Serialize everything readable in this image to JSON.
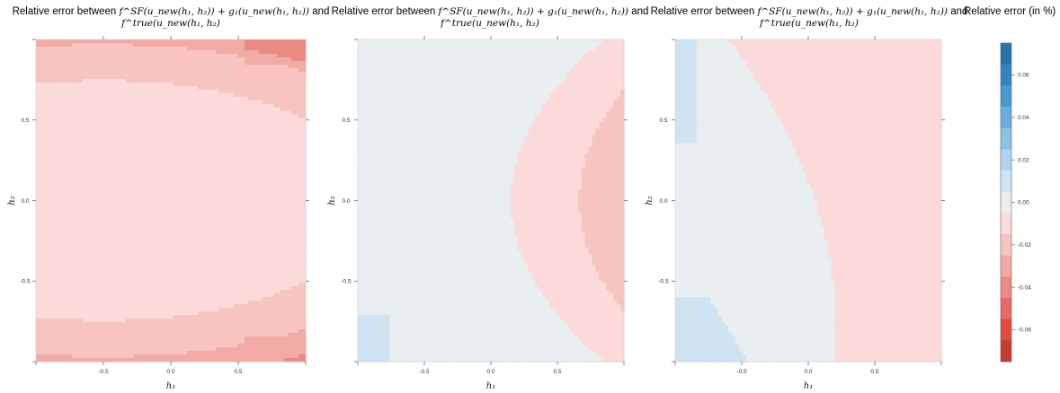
{
  "colorbar": {
    "title": "Relative error (in %)",
    "ticks": [
      "0.06",
      "0.04",
      "0.02",
      "0.00",
      "-0.02",
      "-0.04",
      "-0.06"
    ],
    "levels": [
      0.075,
      0.065,
      0.055,
      0.045,
      0.035,
      0.025,
      0.015,
      0.005,
      -0.005,
      -0.015,
      -0.025,
      -0.035,
      -0.045,
      -0.055,
      -0.065,
      -0.075
    ],
    "colors": [
      "#2a71a9",
      "#3384bd",
      "#4b98d1",
      "#6aacdc",
      "#8fc0e5",
      "#b2d3ee",
      "#cfe3f3",
      "#e9eef0",
      "#fbdad9",
      "#f7c4c1",
      "#f2aaa6",
      "#ea8a83",
      "#e46b64",
      "#e04a3f",
      "#c33c31"
    ]
  },
  "chart_data": [
    {
      "type": "heatmap",
      "title": "Relative error between f^SF(u_new(h1,h2)) + g1(u_new(h1,h2)) and f^true(u_new(h1,h2)",
      "title_line1": "Relative error between ",
      "title_math1": "f^SF(u_new(h₁, h₂)) + g₁(u_new(h₁, h₂))",
      "title_line1_end": " and",
      "title_math2": "f^true(u_new(h₁, h₂)",
      "xlabel": "h₁",
      "ylabel": "h₂",
      "xlim": [
        -1,
        1
      ],
      "ylim": [
        -1,
        1
      ],
      "xticks": [
        "-0.5",
        "0.0",
        "0.5"
      ],
      "yticks": [
        "0.5",
        "0.0",
        "-0.5"
      ],
      "model": "ellipse",
      "levels_by_band": [
        -0.005,
        -0.015,
        -0.025,
        -0.035,
        -0.045,
        -0.055
      ],
      "note_range": [
        -0.06,
        0.0
      ]
    },
    {
      "type": "heatmap",
      "title": "Relative error between f^SF(u_new(h1,h2)) + g1(u_new(h1,h2)) and f^true(u_new(h1,h2)",
      "title_line1": "Relative error between ",
      "title_math1": "f^SF(u_new(h₁, h₂)) + g₁(u_new(h₁, h₂))",
      "title_line1_end": " and",
      "title_math2": "f^true(u_new(h₁, h₂)",
      "xlabel": "h₁",
      "ylabel": "h₂",
      "xlim": [
        -1,
        1
      ],
      "ylim": [
        -1,
        1
      ],
      "xticks": [
        "-0.5",
        "0.0",
        "0.5"
      ],
      "yticks": [
        "0.5",
        "0.0",
        "-0.5"
      ],
      "model": "parabola",
      "note_range": [
        -0.03,
        0.01
      ]
    },
    {
      "type": "heatmap",
      "title": "Relative error between f^SF(u_new(h1,h2)) + g1(u_new(h1,h2)) and f^true(u_new(h1,h2)",
      "title_line1": "Relative error between ",
      "title_math1": "f^SF(u_new(h₁, h₂)) + g₁(u_new(h₁, h₂))",
      "title_line1_end": " and",
      "title_math2": "f^true(u_new(h₁, h₂)",
      "xlabel": "h₁",
      "ylabel": "h₂",
      "xlim": [
        -1,
        1
      ],
      "ylim": [
        -1,
        1
      ],
      "xticks": [
        "-0.5",
        "0.0",
        "0.5"
      ],
      "yticks": [
        "0.5",
        "0.0",
        "-0.5"
      ],
      "model": "saddle",
      "note_range": [
        -0.02,
        0.01
      ]
    }
  ]
}
